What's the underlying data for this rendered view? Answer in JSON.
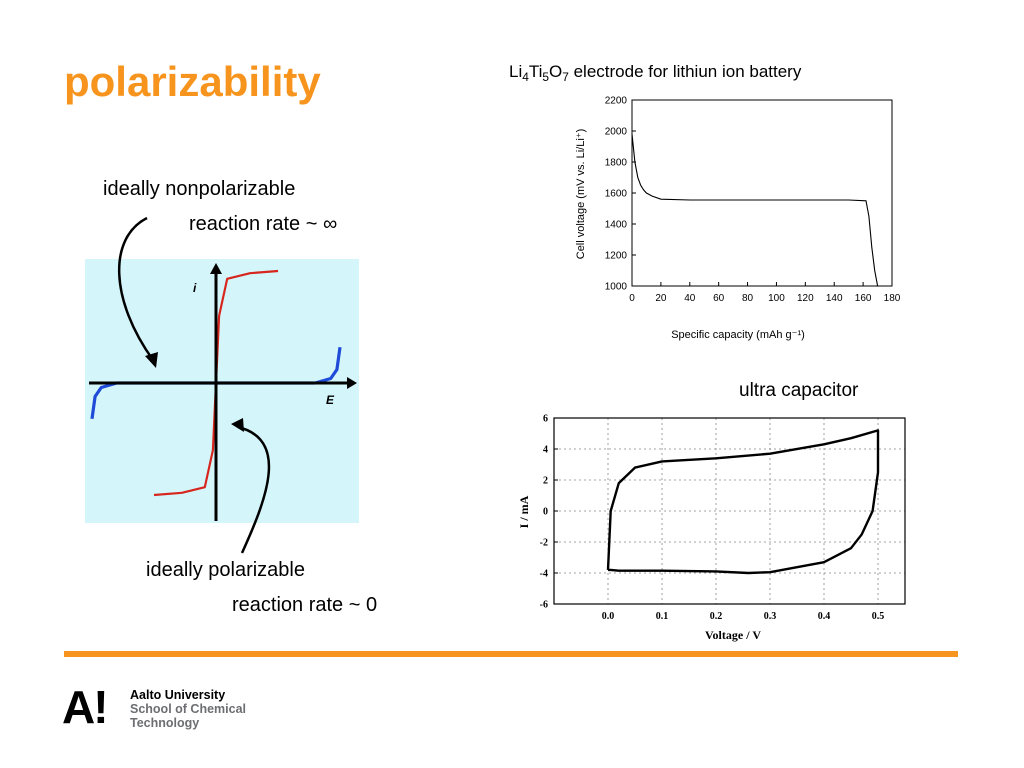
{
  "slide": {
    "title": "polarizability",
    "nonpolar_label": "ideally nonpolarizable",
    "nonpolar_rate": "reaction rate ~ ∞",
    "polar_label": "ideally polarizable",
    "polar_rate": "reaction rate ~ 0",
    "battery_caption_parts": [
      "Li",
      "4",
      "Ti",
      "5",
      "O",
      "7",
      " electrode for lithiun ion battery"
    ],
    "capacitor_caption": "ultra capacitor"
  },
  "footer": {
    "logo_mark": "A!",
    "org_line1": "Aalto University",
    "org_line2": "School of Chemical",
    "org_line3": "Technology",
    "accent": "#f7941d"
  },
  "chart_data": [
    {
      "type": "line",
      "title": "",
      "xlabel": "E",
      "ylabel": "i",
      "background": "#d4f6fa",
      "series": [
        {
          "color": "#d7261e",
          "x": [
            -1.0,
            -0.55,
            -0.18,
            -0.05,
            0.0,
            0.05,
            0.18,
            0.55,
            1.0
          ],
          "y": [
            -1.0,
            -0.98,
            -0.93,
            -0.6,
            0.0,
            0.6,
            0.93,
            0.98,
            1.0
          ]
        },
        {
          "color": "#1f4bd8",
          "x": [
            -2.0,
            -1.95,
            -1.85,
            -1.6,
            0.0,
            1.6,
            1.85,
            1.95,
            2.0
          ],
          "y": [
            -0.32,
            -0.12,
            -0.04,
            0.0,
            0.0,
            0.0,
            0.04,
            0.12,
            0.32
          ]
        }
      ]
    },
    {
      "type": "line",
      "title": "",
      "xlabel": "Specific capacity (mAh g⁻¹)",
      "ylabel": "Cell voltage (mV vs. Li/Li⁺)",
      "xlim": [
        0,
        180
      ],
      "ylim": [
        1000,
        2200
      ],
      "xticks": [
        0,
        20,
        40,
        60,
        80,
        100,
        120,
        140,
        160,
        180
      ],
      "yticks": [
        1000,
        1200,
        1400,
        1600,
        1800,
        2000,
        2200
      ],
      "series": [
        {
          "x": [
            0,
            2,
            4,
            6,
            8,
            10,
            14,
            20,
            40,
            80,
            120,
            150,
            162,
            164,
            166,
            168,
            170
          ],
          "y": [
            1980,
            1800,
            1700,
            1650,
            1620,
            1600,
            1580,
            1560,
            1555,
            1555,
            1555,
            1555,
            1550,
            1450,
            1250,
            1100,
            1000
          ]
        }
      ]
    },
    {
      "type": "line",
      "title": "",
      "xlabel": "Voltage / V",
      "ylabel": "I / mA",
      "xlim": [
        -0.1,
        0.55
      ],
      "ylim": [
        -6,
        6
      ],
      "xticks": [
        0.0,
        0.1,
        0.2,
        0.3,
        0.4,
        0.5
      ],
      "xtick_labels": [
        "0.0",
        "0.1",
        "0.2",
        "0.3",
        "0.4",
        "0.5"
      ],
      "yticks": [
        -6,
        -4,
        -2,
        0,
        2,
        4,
        6
      ],
      "grid": true,
      "series": [
        {
          "x": [
            0.0,
            0.005,
            0.02,
            0.05,
            0.1,
            0.2,
            0.3,
            0.4,
            0.45,
            0.5,
            0.5,
            0.49,
            0.47,
            0.45,
            0.4,
            0.3,
            0.26,
            0.2,
            0.1,
            0.05,
            0.02,
            0.005,
            0.0,
            0.0
          ],
          "y": [
            -3.8,
            0.0,
            1.8,
            2.8,
            3.2,
            3.4,
            3.7,
            4.3,
            4.7,
            5.2,
            2.5,
            0.0,
            -1.5,
            -2.4,
            -3.3,
            -3.95,
            -4.0,
            -3.9,
            -3.85,
            -3.85,
            -3.85,
            -3.8,
            -3.8,
            -3.8
          ]
        }
      ]
    }
  ]
}
